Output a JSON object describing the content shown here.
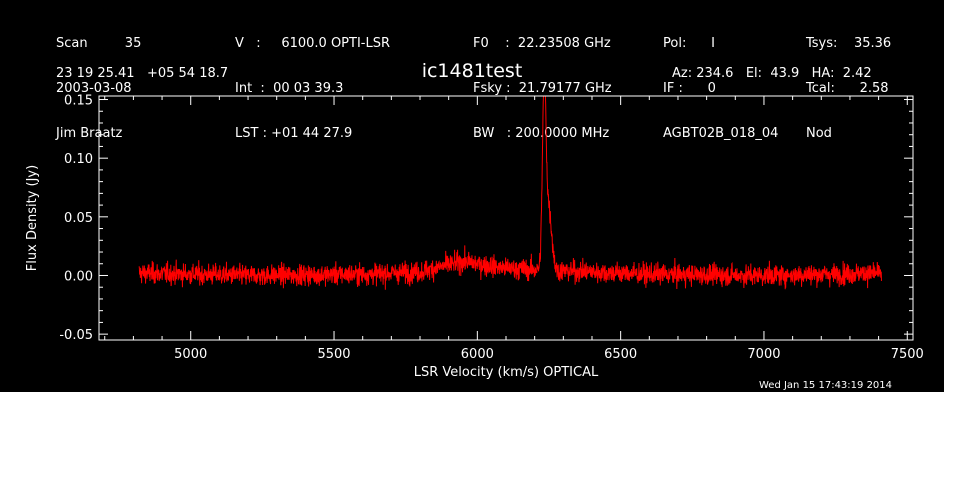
{
  "header": {
    "col1": [
      "Scan         35",
      "2003-03-08",
      "Jim Braatz"
    ],
    "col2": [
      "V   :     6100.0 OPTI-LSR",
      "Int  :  00 03 39.3",
      "LST : +01 44 27.9"
    ],
    "col3": [
      "F0    :  22.23508 GHz",
      "Fsky :  21.79177 GHz",
      "BW   : 200.0000 MHz"
    ],
    "col4": [
      "Pol:      I",
      "IF :      0",
      "AGBT02B_018_04"
    ],
    "col5": [
      "Tsys:    35.36",
      "Tcal:      2.58",
      "Nod"
    ],
    "coords": "23 19 25.41   +05 54 18.7",
    "source": "ic1481test",
    "azelha": "Az: 234.6   El:  43.9   HA:  2.42",
    "timestamp": "Wed Jan 15 17:43:19 2014"
  },
  "colors": {
    "background": "#000000",
    "axes": "#ffffff",
    "spectrum": "#ff0000"
  },
  "chart_data": {
    "type": "line",
    "xlabel": "LSR Velocity (km/s) OPTICAL",
    "ylabel": "Flux Density (Jy)",
    "xlim": [
      4680,
      7520
    ],
    "ylim": [
      -0.055,
      0.153
    ],
    "xticks": [
      5000,
      5500,
      6000,
      6500,
      7000,
      7500
    ],
    "xtick_labels": [
      "5000",
      "5500",
      "6000",
      "6500",
      "7000",
      "7500"
    ],
    "yticks": [
      -0.05,
      0.0,
      0.05,
      0.1,
      0.15
    ],
    "ytick_labels": [
      "-0.05",
      "0.00",
      "0.05",
      "0.10",
      "0.15"
    ],
    "series": [
      {
        "color": "#ff0000",
        "x_range": [
          4820,
          7410
        ],
        "noise_rms": 0.008,
        "baseline": [
          [
            4820,
            0.002
          ],
          [
            5200,
            0.0
          ],
          [
            5600,
            0.001
          ],
          [
            5800,
            0.003
          ],
          [
            5950,
            0.012
          ],
          [
            6100,
            0.006
          ],
          [
            6200,
            0.005
          ],
          [
            6300,
            0.004
          ],
          [
            6600,
            0.001
          ],
          [
            7000,
            0.0
          ],
          [
            7410,
            0.002
          ]
        ],
        "peaks": [
          {
            "center": 6233,
            "height": 0.145,
            "width": 6
          },
          {
            "center": 6245,
            "height": 0.05,
            "width": 10
          },
          {
            "center": 6258,
            "height": 0.015,
            "width": 8
          }
        ]
      }
    ]
  }
}
